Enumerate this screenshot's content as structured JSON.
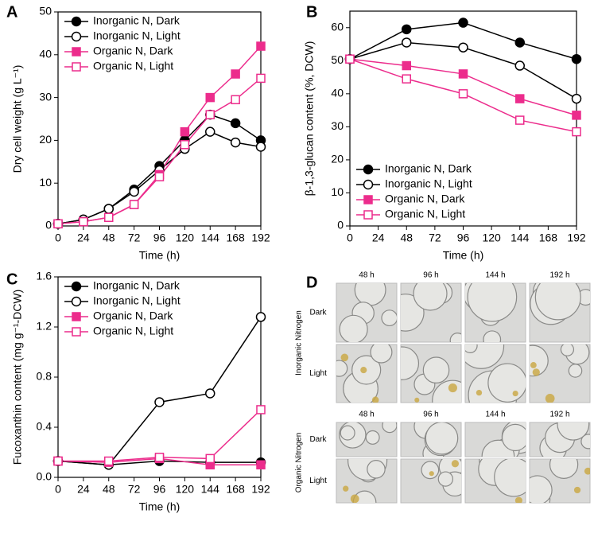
{
  "chart_data": [
    {
      "type": "line",
      "label": "A",
      "ylabel": "Dry cell weight (g L⁻¹)",
      "xlabel": "Time (h)",
      "x": [
        0,
        24,
        48,
        72,
        96,
        120,
        144,
        168,
        192
      ],
      "xlim": [
        0,
        192
      ],
      "xticks": [
        0,
        24,
        48,
        72,
        96,
        120,
        144,
        168,
        192
      ],
      "ylim": [
        0,
        50
      ],
      "yticks": [
        0,
        10,
        20,
        30,
        40,
        50
      ],
      "legend": "upper left",
      "series": [
        {
          "name": "Inorganic N, Dark",
          "color": "#000000",
          "marker": "circle",
          "filled": true,
          "values": [
            0.5,
            1.5,
            4,
            8.5,
            14,
            20,
            26,
            24,
            20
          ]
        },
        {
          "name": "Inorganic N, Light",
          "color": "#000000",
          "marker": "circle",
          "filled": false,
          "values": [
            0.5,
            1.5,
            4,
            8,
            13,
            18,
            22,
            19.5,
            18.5
          ]
        },
        {
          "name": "Organic N, Dark",
          "color": "#ec2c8c",
          "marker": "square",
          "filled": true,
          "values": [
            0.5,
            1,
            2,
            5,
            12,
            22,
            30,
            35.5,
            42
          ]
        },
        {
          "name": "Organic N, Light",
          "color": "#ec2c8c",
          "marker": "square",
          "filled": false,
          "values": [
            0.5,
            1,
            2,
            5,
            11.5,
            19,
            26,
            29.5,
            34.5
          ]
        }
      ]
    },
    {
      "type": "line",
      "label": "B",
      "ylabel": "β-1,3-glucan content (%, DCW)",
      "xlabel": "Time (h)",
      "x": [
        0,
        48,
        96,
        144,
        192
      ],
      "xlim": [
        0,
        192
      ],
      "xticks": [
        0,
        24,
        48,
        72,
        96,
        120,
        144,
        168,
        192
      ],
      "ylim": [
        0,
        65
      ],
      "yticks": [
        0,
        10,
        20,
        30,
        40,
        50,
        60
      ],
      "legend": "lower left",
      "series": [
        {
          "name": "Inorganic N, Dark",
          "color": "#000000",
          "marker": "circle",
          "filled": true,
          "values": [
            50.5,
            59.5,
            61.5,
            55.5,
            50.5
          ]
        },
        {
          "name": "Inorganic N, Light",
          "color": "#000000",
          "marker": "circle",
          "filled": false,
          "values": [
            50.5,
            55.5,
            54,
            48.5,
            38.5
          ]
        },
        {
          "name": "Organic N, Dark",
          "color": "#ec2c8c",
          "marker": "square",
          "filled": true,
          "values": [
            50.5,
            48.5,
            46,
            38.5,
            33.5
          ]
        },
        {
          "name": "Organic N, Light",
          "color": "#ec2c8c",
          "marker": "square",
          "filled": false,
          "values": [
            50.5,
            44.5,
            40,
            32,
            28.5
          ]
        }
      ]
    },
    {
      "type": "line",
      "label": "C",
      "ylabel": "Fucoxanthin content (mg g⁻¹-DCW)",
      "xlabel": "Time (h)",
      "x": [
        0,
        48,
        96,
        144,
        192
      ],
      "xlim": [
        0,
        192
      ],
      "xticks": [
        0,
        24,
        48,
        72,
        96,
        120,
        144,
        168,
        192
      ],
      "ylim": [
        0,
        1.6
      ],
      "yticks": [
        {
          "value": 0,
          "label": "0.0"
        },
        0.4,
        0.8,
        1.2,
        1.6
      ],
      "legend": "upper left",
      "series": [
        {
          "name": "Inorganic N, Dark",
          "color": "#000000",
          "marker": "circle",
          "filled": true,
          "values": [
            0.13,
            0.1,
            0.13,
            0.12,
            0.12
          ]
        },
        {
          "name": "Inorganic N, Light",
          "color": "#000000",
          "marker": "circle",
          "filled": false,
          "values": [
            0.13,
            0.1,
            0.6,
            0.67,
            1.28
          ]
        },
        {
          "name": "Organic N, Dark",
          "color": "#ec2c8c",
          "marker": "square",
          "filled": true,
          "values": [
            0.13,
            0.12,
            0.15,
            0.1,
            0.1
          ]
        },
        {
          "name": "Organic N, Light",
          "color": "#ec2c8c",
          "marker": "square",
          "filled": false,
          "values": [
            0.13,
            0.13,
            0.16,
            0.15,
            0.54
          ]
        }
      ]
    }
  ],
  "micrographs": {
    "label": "D",
    "groups": [
      {
        "name": "Inorganic Nitrogen",
        "columns": [
          "48 h",
          "96 h",
          "144 h",
          "192 h"
        ],
        "rows": [
          "Dark",
          "Light"
        ]
      },
      {
        "name": "Organic Nitrogen",
        "columns": [
          "48 h",
          "96 h",
          "144 h",
          "192 h"
        ],
        "rows": [
          "Dark",
          "Light"
        ]
      }
    ]
  }
}
